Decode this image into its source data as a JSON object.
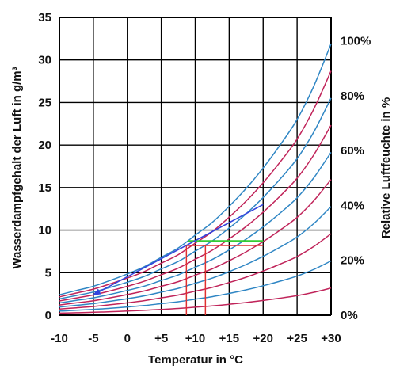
{
  "chart_data": {
    "type": "line",
    "title": "",
    "xlabel": "Temperatur in °C",
    "ylabel": "Wasserdampfgehalt der Luft in g/m³",
    "y2label": "Relative Luftfeuchte in %",
    "xlim": [
      -10,
      30
    ],
    "ylim": [
      0,
      35
    ],
    "x_ticks": [
      -10,
      -5,
      0,
      5,
      10,
      15,
      20,
      25,
      30
    ],
    "x_tick_labels": [
      "-10",
      "-5",
      "0",
      "+5",
      "+10",
      "+15",
      "+20",
      "+25",
      "+30"
    ],
    "y_ticks": [
      0,
      5,
      10,
      15,
      20,
      25,
      30,
      35
    ],
    "y_tick_labels": [
      "0",
      "5",
      "10",
      "15",
      "20",
      "25",
      "30",
      "35"
    ],
    "y2_ticks": [
      {
        "label": "0%",
        "y": 0
      },
      {
        "label": "20%",
        "y": 6.45
      },
      {
        "label": "40%",
        "y": 12.9
      },
      {
        "label": "60%",
        "y": 19.35
      },
      {
        "label": "80%",
        "y": 25.8
      },
      {
        "label": "100%",
        "y": 32.25
      }
    ],
    "grid": true,
    "x": [
      -10,
      -7.5,
      -5,
      -2.5,
      0,
      2.5,
      5,
      7.5,
      10,
      12.5,
      15,
      17.5,
      20,
      22.5,
      25,
      27.5,
      30
    ],
    "saturation": [
      2.4,
      2.9,
      3.4,
      4.1,
      4.85,
      5.7,
      6.8,
      7.9,
      9.4,
      10.9,
      12.8,
      14.9,
      17.3,
      20.0,
      23.0,
      27.0,
      31.9
    ],
    "series": [
      {
        "rh": 100,
        "color": "#2f86c4"
      },
      {
        "rh": 90,
        "color": "#c0245a"
      },
      {
        "rh": 80,
        "color": "#2f86c4"
      },
      {
        "rh": 70,
        "color": "#c0245a"
      },
      {
        "rh": 60,
        "color": "#2f86c4"
      },
      {
        "rh": 50,
        "color": "#c0245a"
      },
      {
        "rh": 40,
        "color": "#2f86c4"
      },
      {
        "rh": 30,
        "color": "#c0245a"
      },
      {
        "rh": 20,
        "color": "#2f86c4"
      },
      {
        "rh": 10,
        "color": "#c0245a"
      }
    ],
    "annotations": {
      "arrow": {
        "from": [
          20,
          13
        ],
        "to": [
          -5,
          2.4
        ],
        "color": "#3344dd"
      },
      "green_segment": {
        "from": [
          9,
          8.7
        ],
        "to": [
          20,
          8.7
        ],
        "color": "#33cc33"
      },
      "red_segment": {
        "from": [
          8.7,
          8.2
        ],
        "to": [
          20,
          8.2
        ],
        "color": "#e03030"
      },
      "red_vertical_1": {
        "x": 8.7,
        "y_from": 0,
        "y_to": 8.2,
        "color": "#e03030"
      },
      "red_vertical_2": {
        "x": 11.5,
        "y_from": 0,
        "y_to": 8.2,
        "color": "#e03030"
      }
    },
    "colors": {
      "blue": "#2f86c4",
      "red": "#c0245a",
      "grid": "#000000"
    }
  }
}
